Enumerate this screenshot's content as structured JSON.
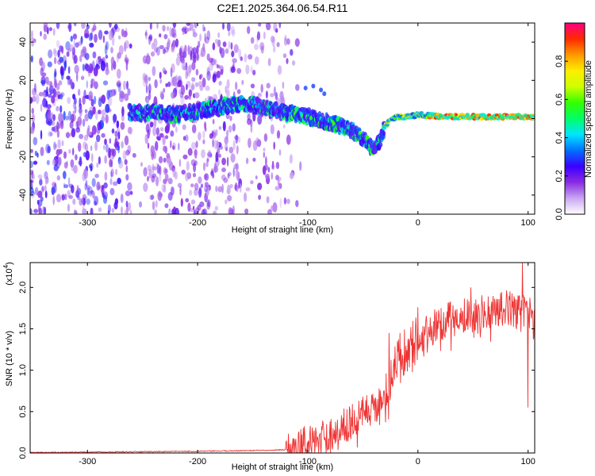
{
  "title": "C2E1.2025.364.06.54.R11",
  "chart_data": [
    {
      "type": "heatmap",
      "title": "C2E1.2025.364.06.54.R11",
      "xlabel": "Height of straight line (km)",
      "ylabel": "Frequency (Hz)",
      "xlim": [
        -352,
        106
      ],
      "ylim": [
        -50,
        50
      ],
      "xticks": [
        -300,
        -200,
        -100,
        0,
        100
      ],
      "yticks": [
        -40,
        -20,
        0,
        20,
        40
      ],
      "colorbar": {
        "label": "Normalized spectral amplitude",
        "range": [
          0,
          1
        ],
        "ticks": [
          0.0,
          0.2,
          0.4,
          0.6,
          0.8
        ],
        "colormap": [
          "#ffffff",
          "#c9a6f2",
          "#8a2be2",
          "#3a00ff",
          "#0070ff",
          "#00e5ff",
          "#00ff66",
          "#33ff00",
          "#ccff00",
          "#ffee00",
          "#ff9900",
          "#ff2a00",
          "#ff007f"
        ]
      },
      "ridge": {
        "description": "main signal frequency vs height",
        "x": [
          -262,
          -240,
          -220,
          -200,
          -180,
          -160,
          -140,
          -120,
          -100,
          -80,
          -70,
          -60,
          -50,
          -45,
          -40,
          -35,
          -30,
          -25,
          -20,
          -10,
          0,
          20,
          40,
          60,
          80,
          100,
          106
        ],
        "y": [
          3,
          3,
          2,
          4,
          6,
          8,
          6,
          3,
          1,
          -2,
          -4,
          -6,
          -10,
          -14,
          -16,
          -12,
          -4,
          -1,
          1,
          1,
          2,
          1,
          1,
          1,
          1,
          1,
          1
        ]
      },
      "noise_region_x": [
        -352,
        -130
      ]
    },
    {
      "type": "line",
      "xlabel": "Height of straight line (km)",
      "ylabel": "SNR (10 * v/v)",
      "yexponent_label": "(x10",
      "yexponent": "4",
      "yexponent_close": ")",
      "xlim": [
        -352,
        106
      ],
      "ylim": [
        0,
        2.3
      ],
      "xticks": [
        -300,
        -200,
        -100,
        0,
        100
      ],
      "yticks": [
        "0.0",
        "0.5",
        "1.0",
        "1.5",
        "2.0"
      ],
      "ytick_values": [
        0,
        0.5,
        1.0,
        1.5,
        2.0
      ],
      "color": "#ef3333",
      "envelope": {
        "x": [
          -352,
          -300,
          -200,
          -150,
          -120,
          -110,
          -100,
          -90,
          -80,
          -70,
          -60,
          -50,
          -40,
          -30,
          -25,
          -20,
          -10,
          0,
          10,
          20,
          30,
          40,
          50,
          60,
          70,
          80,
          90,
          100,
          106
        ],
        "y": [
          0.005,
          0.01,
          0.02,
          0.03,
          0.04,
          0.08,
          0.12,
          0.17,
          0.22,
          0.3,
          0.38,
          0.45,
          0.55,
          0.68,
          0.95,
          1.1,
          1.28,
          1.38,
          1.48,
          1.55,
          1.62,
          1.66,
          1.7,
          1.72,
          1.74,
          1.75,
          1.74,
          1.72,
          1.55
        ]
      },
      "spikes": [
        {
          "x": -50,
          "y": 0.68
        },
        {
          "x": -35,
          "y": 0.78
        },
        {
          "x": -26,
          "y": 1.45
        },
        {
          "x": 0,
          "y": 1.76
        },
        {
          "x": 48,
          "y": 2.0
        },
        {
          "x": 95,
          "y": 2.3
        },
        {
          "x": 100,
          "y": 0.55
        }
      ]
    }
  ]
}
